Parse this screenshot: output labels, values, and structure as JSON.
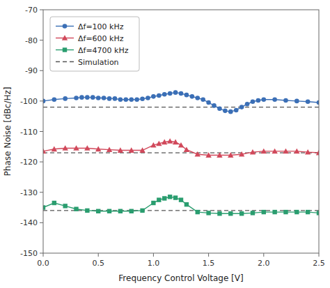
{
  "chart_data": {
    "type": "line",
    "xlabel": "Frequency Control Voltage [V]",
    "ylabel": "Phase Noise [dBc/Hz]",
    "xlim": [
      0.0,
      2.5
    ],
    "ylim": [
      -150,
      -70
    ],
    "xticks": [
      {
        "value": 0,
        "label": "0.0"
      },
      0.5,
      {
        "value": 1,
        "label": "1.0"
      },
      1.5,
      {
        "value": 2,
        "label": "2.0"
      },
      2.5
    ],
    "yticks": [
      -150,
      -140,
      -130,
      -120,
      -110,
      -100,
      -90,
      -80,
      -70
    ],
    "grid": false,
    "legend": "upper left",
    "series": [
      {
        "name": "Δf=100 kHz",
        "marker": "circle",
        "line_style": "solid",
        "x": [
          0.0,
          0.1,
          0.2,
          0.3,
          0.35,
          0.4,
          0.45,
          0.5,
          0.55,
          0.6,
          0.65,
          0.7,
          0.75,
          0.8,
          0.85,
          0.9,
          0.95,
          1.0,
          1.05,
          1.1,
          1.15,
          1.2,
          1.25,
          1.3,
          1.35,
          1.4,
          1.45,
          1.5,
          1.55,
          1.6,
          1.65,
          1.7,
          1.75,
          1.8,
          1.85,
          1.9,
          1.95,
          2.0,
          2.1,
          2.2,
          2.3,
          2.4,
          2.5
        ],
        "values": [
          -100,
          -99.5,
          -99.2,
          -99.0,
          -98.8,
          -98.8,
          -98.8,
          -99.0,
          -99.0,
          -99.2,
          -99.2,
          -99.5,
          -99.5,
          -99.5,
          -99.5,
          -99.3,
          -99.0,
          -98.5,
          -98.2,
          -97.8,
          -97.5,
          -97.2,
          -97.5,
          -98.0,
          -98.5,
          -99.0,
          -99.5,
          -100.5,
          -101.5,
          -102.5,
          -103.2,
          -103.5,
          -103.0,
          -102.0,
          -101.0,
          -100.2,
          -99.8,
          -99.5,
          -99.5,
          -99.8,
          -100.0,
          -100.2,
          -100.5
        ]
      },
      {
        "name": "Δf=600 kHz",
        "marker": "triangle",
        "line_style": "solid",
        "x": [
          0.0,
          0.1,
          0.2,
          0.3,
          0.4,
          0.5,
          0.6,
          0.7,
          0.8,
          0.9,
          1.0,
          1.05,
          1.1,
          1.15,
          1.2,
          1.25,
          1.3,
          1.4,
          1.5,
          1.6,
          1.7,
          1.8,
          1.9,
          2.0,
          2.1,
          2.2,
          2.3,
          2.4,
          2.5
        ],
        "values": [
          -116.5,
          -115.8,
          -115.5,
          -115.5,
          -115.5,
          -115.8,
          -116.0,
          -116.2,
          -116.2,
          -116.2,
          -114.5,
          -114.0,
          -113.5,
          -113.2,
          -113.5,
          -114.5,
          -116.0,
          -117.5,
          -117.8,
          -117.8,
          -117.8,
          -117.5,
          -116.8,
          -116.5,
          -116.5,
          -116.5,
          -116.5,
          -116.8,
          -117.0
        ]
      },
      {
        "name": "Δf=4700 kHz",
        "marker": "square",
        "line_style": "solid",
        "x": [
          0.0,
          0.1,
          0.2,
          0.3,
          0.4,
          0.5,
          0.6,
          0.7,
          0.8,
          0.9,
          1.0,
          1.05,
          1.1,
          1.15,
          1.2,
          1.25,
          1.3,
          1.4,
          1.5,
          1.6,
          1.7,
          1.8,
          1.9,
          2.0,
          2.1,
          2.2,
          2.3,
          2.4,
          2.5
        ],
        "values": [
          -135.0,
          -133.5,
          -134.5,
          -135.5,
          -136.0,
          -136.2,
          -136.2,
          -136.2,
          -136.2,
          -136.0,
          -133.5,
          -132.5,
          -132.0,
          -131.5,
          -131.8,
          -132.5,
          -134.0,
          -136.5,
          -136.8,
          -137.0,
          -137.0,
          -137.0,
          -136.8,
          -136.5,
          -136.5,
          -136.5,
          -136.5,
          -136.5,
          -136.8
        ]
      },
      {
        "name": "Simulation",
        "type": "hline",
        "line_style": "dashed",
        "values": [
          -102,
          -117,
          -136
        ]
      }
    ]
  }
}
